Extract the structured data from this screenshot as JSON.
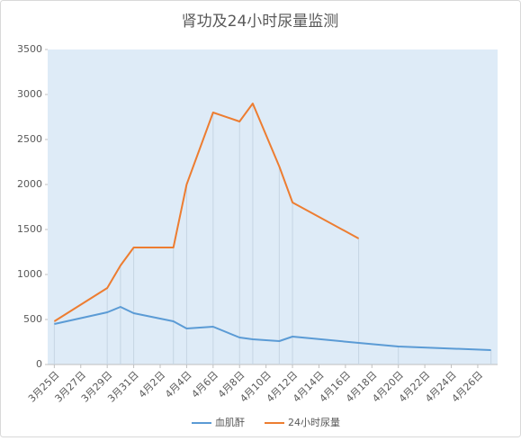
{
  "chart_data": {
    "type": "line",
    "title": "肾功及24小时尿量监测",
    "x": [
      "3月25日",
      "3月29日",
      "3月30日",
      "3月31日",
      "4月3日",
      "4月4日",
      "4月6日",
      "4月8日",
      "4月9日",
      "4月11日",
      "4月12日",
      "4月17日",
      "4月20日",
      "4月27日"
    ],
    "series": [
      {
        "name": "血肌酐",
        "color": "#5b9bd5",
        "values": [
          450,
          580,
          640,
          570,
          480,
          400,
          420,
          300,
          280,
          260,
          310,
          240,
          200,
          160
        ]
      },
      {
        "name": "24小时尿量",
        "color": "#ed7d31",
        "values": [
          480,
          850,
          1100,
          1300,
          1300,
          2000,
          2800,
          2700,
          2900,
          2200,
          1800,
          1400,
          null,
          null
        ]
      }
    ],
    "xlim": [
      "3月25日",
      "4月27日"
    ],
    "xticks": [
      "3月25日",
      "3月27日",
      "3月29日",
      "3月31日",
      "4月2日",
      "4月4日",
      "4月6日",
      "4月8日",
      "4月10日",
      "4月12日",
      "4月14日",
      "4月16日",
      "4月18日",
      "4月20日",
      "4月22日",
      "4月24日",
      "4月26日"
    ],
    "ylim": [
      0,
      3500
    ],
    "yticks": [
      0,
      500,
      1000,
      1500,
      2000,
      2500,
      3000,
      3500
    ],
    "legend": "bottom",
    "plot_background": "#deebf7"
  }
}
